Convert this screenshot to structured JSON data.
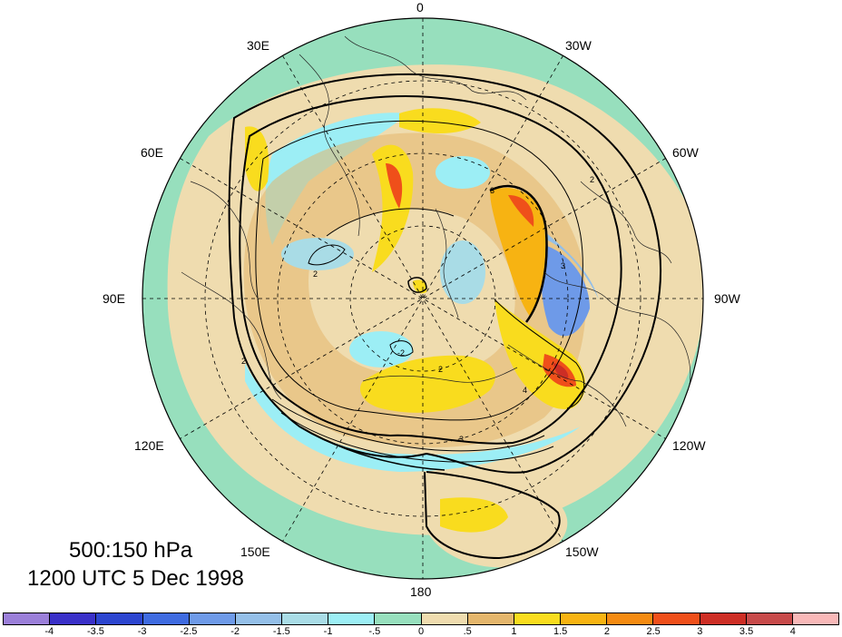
{
  "map": {
    "projection": "north-polar-stereographic",
    "longitude_labels": {
      "lon_0": "0",
      "lon_30e": "30E",
      "lon_30w": "30W",
      "lon_60e": "60E",
      "lon_60w": "60W",
      "lon_90e": "90E",
      "lon_90w": "90W",
      "lon_120e": "120E",
      "lon_120w": "120W",
      "lon_150e": "150E",
      "lon_150w": "150W",
      "lon_180": "180"
    },
    "contour_labels": [
      "2",
      "3",
      "2",
      "-2",
      "4",
      "2",
      "3",
      "2",
      "3"
    ]
  },
  "info": {
    "level": "500:150 hPa",
    "time": "1200 UTC 5 Dec 1998"
  },
  "colorbar": {
    "labels": [
      "-4",
      "-3.5",
      "-3",
      "-2.5",
      "-2",
      "-1.5",
      "-1",
      "-.5",
      "0",
      ".5",
      "1",
      "1.5",
      "2",
      "2.5",
      "3",
      "3.5",
      "4"
    ],
    "colors": [
      "#9b7fd9",
      "#3a30c8",
      "#2c45cf",
      "#3f6be0",
      "#6e9ae8",
      "#94bfe8",
      "#a9dce6",
      "#9ceef5",
      "#97dfbd",
      "#efdcaf",
      "#e4b66c",
      "#f9dc1e",
      "#f7b312",
      "#f48a11",
      "#ef4f1a",
      "#cd2e25",
      "#c74a4a",
      "#f8b8b8"
    ]
  }
}
